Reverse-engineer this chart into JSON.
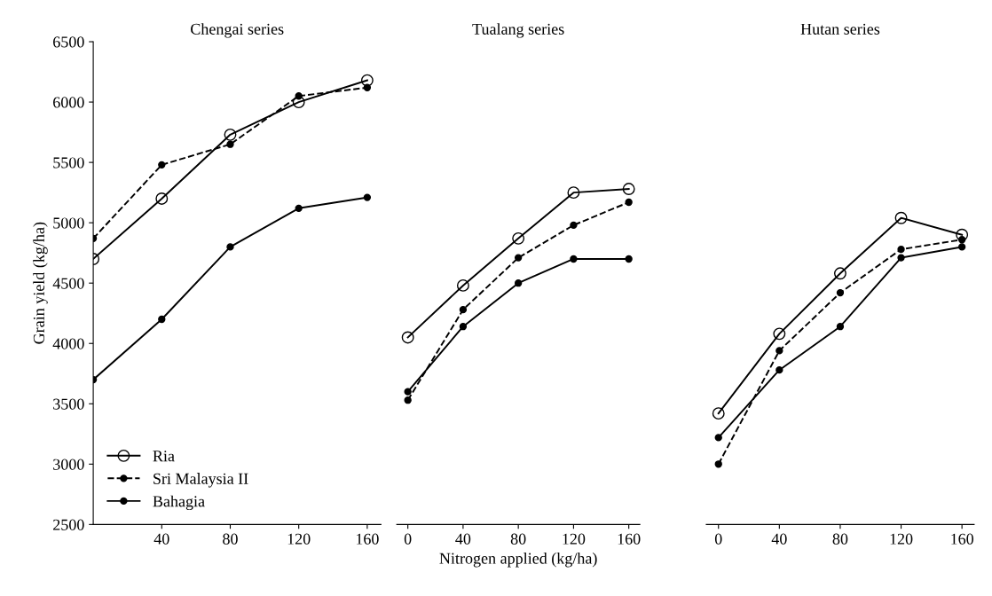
{
  "chart_data": [
    {
      "type": "line",
      "title": "Chengai series",
      "ylabel": "Grain yield (kg/ha)",
      "x": [
        0,
        40,
        80,
        120,
        160
      ],
      "xlim": [
        0,
        168
      ],
      "xticks": [
        40,
        80,
        120,
        160
      ],
      "ylim": [
        2500,
        6500
      ],
      "yticks": [
        2500,
        3000,
        3500,
        4000,
        4500,
        5000,
        5500,
        6000,
        6500
      ],
      "marker": "circle",
      "grid": false,
      "legend": "bottom left",
      "series": [
        {
          "name": "Ria",
          "color": "#000000",
          "line_style": "solid",
          "values": [
            4700,
            5200,
            5730,
            6000,
            6180
          ]
        },
        {
          "name": "Sri Malaysia II",
          "color": "#000000",
          "line_style": "dashed",
          "values": [
            4870,
            5480,
            5650,
            6050,
            6120
          ]
        },
        {
          "name": "Bahagia",
          "color": "#000000",
          "line_style": "solid",
          "values": [
            3700,
            4200,
            4800,
            5120,
            5210
          ]
        }
      ]
    },
    {
      "type": "line",
      "title": "Tualang series",
      "xlabel": "Nitrogen applied (kg/ha)",
      "x": [
        0,
        40,
        80,
        120,
        160
      ],
      "xlim": [
        -8,
        168
      ],
      "xticks": [
        0,
        40,
        80,
        120,
        160
      ],
      "ylim": [
        2500,
        6500
      ],
      "tick_labels": "x",
      "marker": "circle",
      "grid": false,
      "series": [
        {
          "color": "#000000",
          "line_style": "solid",
          "values": [
            4050,
            4480,
            4870,
            5250,
            5280
          ]
        },
        {
          "color": "#000000",
          "line_style": "dashed",
          "values": [
            3530,
            4280,
            4710,
            4980,
            5170
          ]
        },
        {
          "color": "#000000",
          "line_style": "solid",
          "values": [
            3600,
            4140,
            4500,
            4700,
            4700
          ]
        }
      ]
    },
    {
      "type": "line",
      "title": "Hutan series",
      "x": [
        0,
        40,
        80,
        120,
        160
      ],
      "xlim": [
        -8,
        168
      ],
      "xticks": [
        0,
        40,
        80,
        120,
        160
      ],
      "ylim": [
        2500,
        6500
      ],
      "tick_labels": "x",
      "marker": "circle",
      "grid": false,
      "series": [
        {
          "color": "#000000",
          "line_style": "solid",
          "values": [
            3420,
            4080,
            4580,
            5040,
            4900
          ]
        },
        {
          "color": "#000000",
          "line_style": "dashed",
          "values": [
            3000,
            3940,
            4420,
            4780,
            4860
          ]
        },
        {
          "color": "#000000",
          "line_style": "solid",
          "values": [
            3220,
            3780,
            4140,
            4710,
            4800
          ]
        }
      ]
    }
  ]
}
